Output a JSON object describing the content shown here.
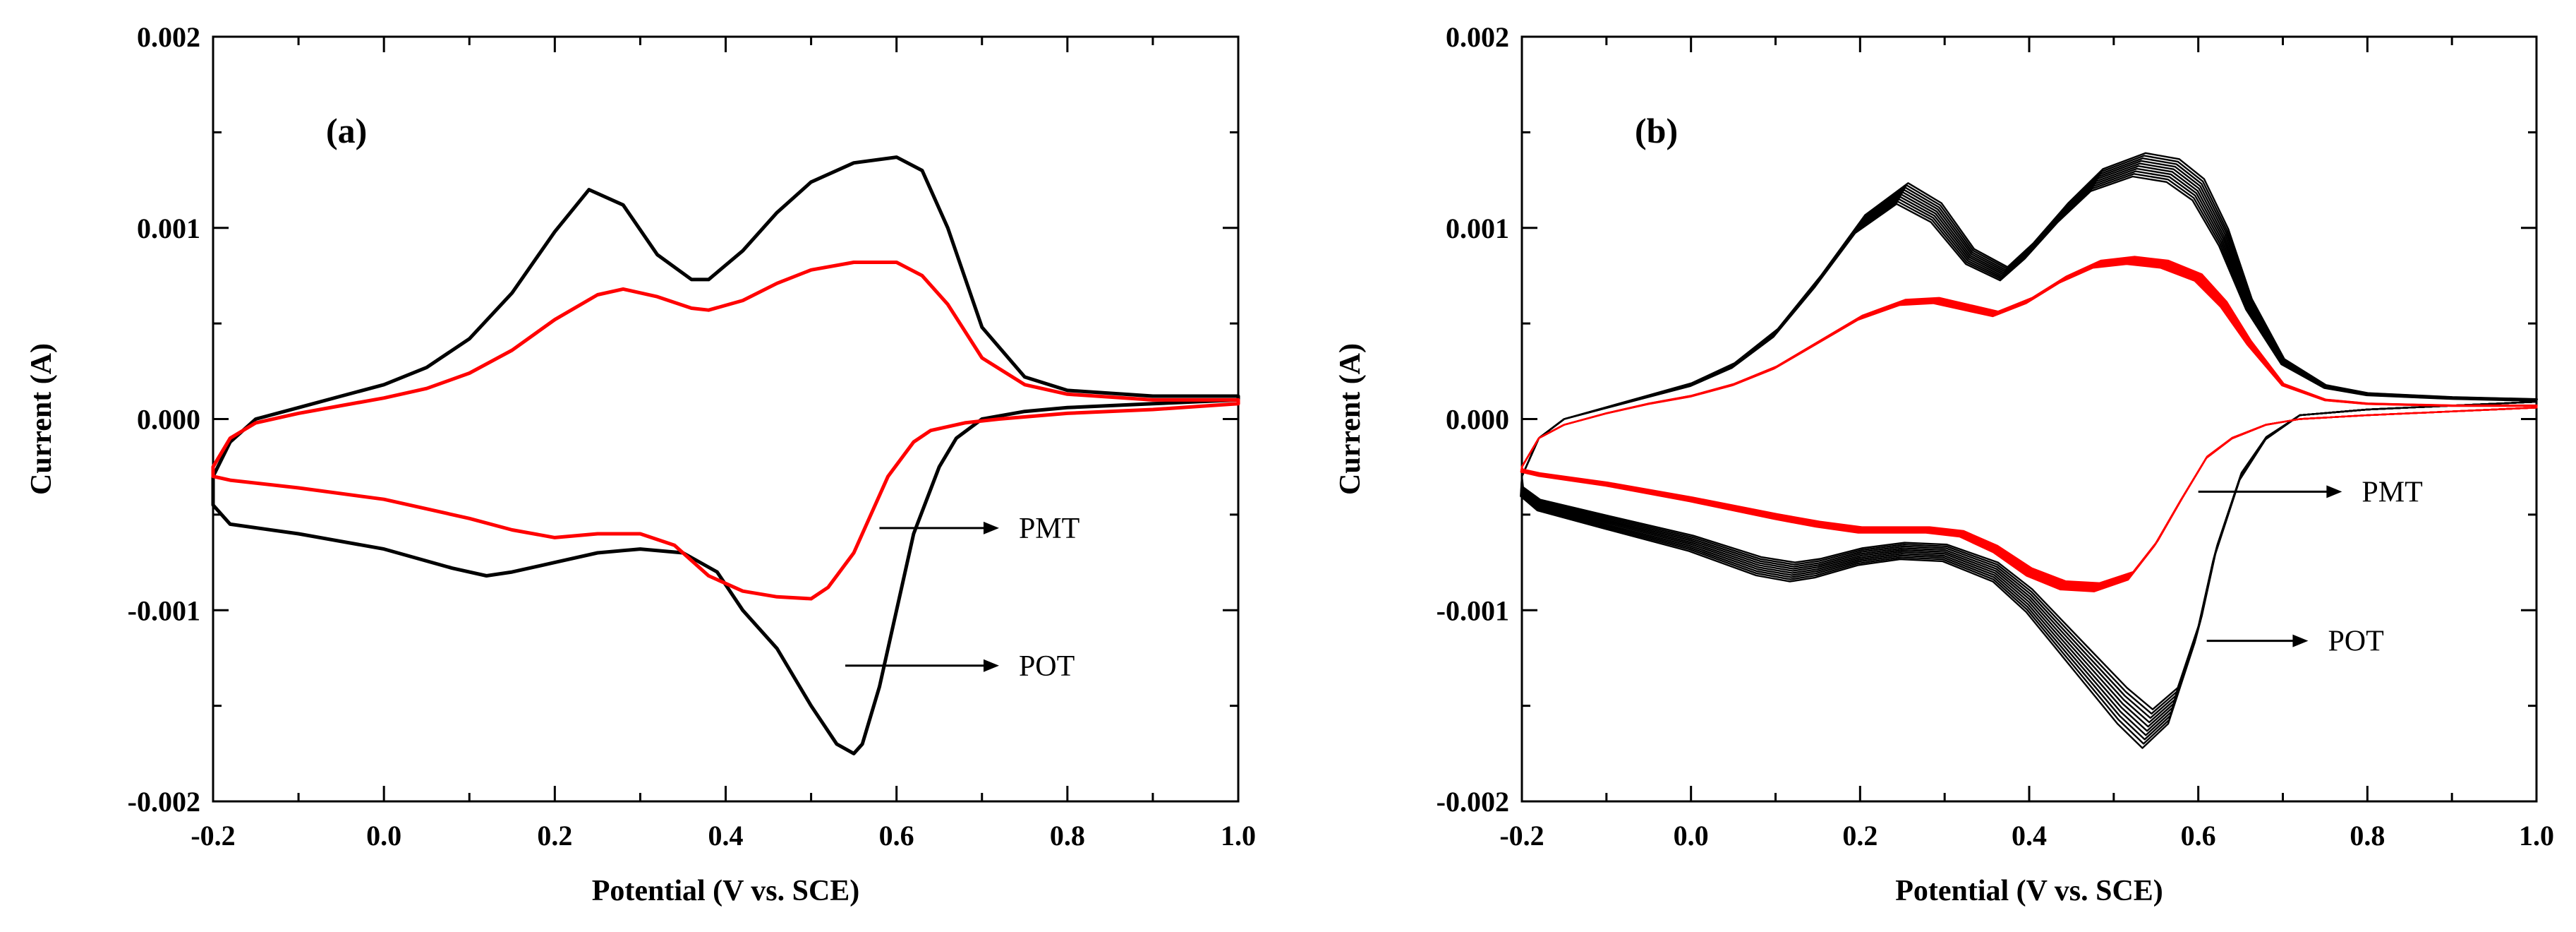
{
  "chart_data": [
    {
      "panel_label": "(a)",
      "type": "line",
      "xlabel": "Potential (V vs. SCE)",
      "ylabel": "Current (A)",
      "xlim": [
        -0.2,
        1.0
      ],
      "ylim": [
        -0.002,
        0.002
      ],
      "xticks": [
        -0.2,
        0.0,
        0.2,
        0.4,
        0.6,
        0.8,
        1.0
      ],
      "xtick_labels": [
        "-0.2",
        "0.0",
        "0.2",
        "0.4",
        "0.6",
        "0.8",
        "1.0"
      ],
      "yticks": [
        -0.002,
        -0.001,
        0.0,
        0.001,
        0.002
      ],
      "ytick_labels": [
        "-0.002",
        "-0.001",
        "0.000",
        "0.001",
        "0.002"
      ],
      "cycles": 1,
      "series": [
        {
          "name": "POT",
          "color": "#000000",
          "anodic": [
            [
              -0.2,
              -0.0003
            ],
            [
              -0.18,
              -0.00012
            ],
            [
              -0.15,
              0.0
            ],
            [
              -0.1,
              6e-05
            ],
            [
              -0.05,
              0.00012
            ],
            [
              0.0,
              0.00018
            ],
            [
              0.05,
              0.00027
            ],
            [
              0.1,
              0.00042
            ],
            [
              0.15,
              0.00066
            ],
            [
              0.2,
              0.00098
            ],
            [
              0.24,
              0.0012
            ],
            [
              0.28,
              0.00112
            ],
            [
              0.32,
              0.00086
            ],
            [
              0.36,
              0.00073
            ],
            [
              0.38,
              0.00073
            ],
            [
              0.42,
              0.00088
            ],
            [
              0.46,
              0.00108
            ],
            [
              0.5,
              0.00124
            ],
            [
              0.55,
              0.00134
            ],
            [
              0.6,
              0.00137
            ],
            [
              0.63,
              0.0013
            ],
            [
              0.66,
              0.001
            ],
            [
              0.7,
              0.00048
            ],
            [
              0.75,
              0.00022
            ],
            [
              0.8,
              0.00015
            ],
            [
              0.9,
              0.00012
            ],
            [
              1.0,
              0.00012
            ]
          ],
          "cathodic": [
            [
              1.0,
              0.0001
            ],
            [
              0.9,
              8e-05
            ],
            [
              0.8,
              6e-05
            ],
            [
              0.75,
              4e-05
            ],
            [
              0.7,
              0.0
            ],
            [
              0.67,
              -0.0001
            ],
            [
              0.65,
              -0.00025
            ],
            [
              0.62,
              -0.0006
            ],
            [
              0.6,
              -0.001
            ],
            [
              0.58,
              -0.0014
            ],
            [
              0.56,
              -0.0017
            ],
            [
              0.55,
              -0.00175
            ],
            [
              0.53,
              -0.0017
            ],
            [
              0.5,
              -0.0015
            ],
            [
              0.46,
              -0.0012
            ],
            [
              0.42,
              -0.001
            ],
            [
              0.39,
              -0.0008
            ],
            [
              0.35,
              -0.0007
            ],
            [
              0.3,
              -0.00068
            ],
            [
              0.25,
              -0.0007
            ],
            [
              0.2,
              -0.00075
            ],
            [
              0.15,
              -0.0008
            ],
            [
              0.12,
              -0.00082
            ],
            [
              0.08,
              -0.00078
            ],
            [
              0.0,
              -0.00068
            ],
            [
              -0.1,
              -0.0006
            ],
            [
              -0.18,
              -0.00055
            ],
            [
              -0.2,
              -0.00045
            ]
          ]
        },
        {
          "name": "PMT",
          "color": "#ff0000",
          "anodic": [
            [
              -0.2,
              -0.00025
            ],
            [
              -0.18,
              -0.0001
            ],
            [
              -0.15,
              -2e-05
            ],
            [
              -0.1,
              3e-05
            ],
            [
              -0.05,
              7e-05
            ],
            [
              0.0,
              0.00011
            ],
            [
              0.05,
              0.00016
            ],
            [
              0.1,
              0.00024
            ],
            [
              0.15,
              0.00036
            ],
            [
              0.2,
              0.00052
            ],
            [
              0.25,
              0.00065
            ],
            [
              0.28,
              0.00068
            ],
            [
              0.32,
              0.00064
            ],
            [
              0.36,
              0.00058
            ],
            [
              0.38,
              0.00057
            ],
            [
              0.42,
              0.00062
            ],
            [
              0.46,
              0.00071
            ],
            [
              0.5,
              0.00078
            ],
            [
              0.55,
              0.00082
            ],
            [
              0.6,
              0.00082
            ],
            [
              0.63,
              0.00075
            ],
            [
              0.66,
              0.0006
            ],
            [
              0.7,
              0.00032
            ],
            [
              0.75,
              0.00018
            ],
            [
              0.8,
              0.00013
            ],
            [
              0.9,
              0.0001
            ],
            [
              1.0,
              0.0001
            ]
          ],
          "cathodic": [
            [
              1.0,
              8e-05
            ],
            [
              0.9,
              5e-05
            ],
            [
              0.8,
              3e-05
            ],
            [
              0.72,
              0.0
            ],
            [
              0.68,
              -2e-05
            ],
            [
              0.64,
              -6e-05
            ],
            [
              0.62,
              -0.00012
            ],
            [
              0.59,
              -0.0003
            ],
            [
              0.57,
              -0.0005
            ],
            [
              0.55,
              -0.0007
            ],
            [
              0.52,
              -0.00088
            ],
            [
              0.5,
              -0.00094
            ],
            [
              0.46,
              -0.00093
            ],
            [
              0.42,
              -0.0009
            ],
            [
              0.38,
              -0.00082
            ],
            [
              0.34,
              -0.00066
            ],
            [
              0.3,
              -0.0006
            ],
            [
              0.25,
              -0.0006
            ],
            [
              0.2,
              -0.00062
            ],
            [
              0.15,
              -0.00058
            ],
            [
              0.1,
              -0.00052
            ],
            [
              0.0,
              -0.00042
            ],
            [
              -0.1,
              -0.00036
            ],
            [
              -0.18,
              -0.00032
            ],
            [
              -0.2,
              -0.0003
            ]
          ]
        }
      ],
      "annotations": [
        {
          "text": "PMT",
          "arrow_start": [
            0.58,
            -0.00057
          ],
          "arrow_end": [
            0.72,
            -0.00057
          ]
        },
        {
          "text": "POT",
          "arrow_start": [
            0.54,
            -0.00129
          ],
          "arrow_end": [
            0.72,
            -0.00129
          ]
        }
      ]
    },
    {
      "panel_label": "(b)",
      "type": "line",
      "xlabel": "Potential (V vs. SCE)",
      "ylabel": "Current (A)",
      "xlim": [
        -0.2,
        1.0
      ],
      "ylim": [
        -0.002,
        0.002
      ],
      "xticks": [
        -0.2,
        0.0,
        0.2,
        0.4,
        0.6,
        0.8,
        1.0
      ],
      "xtick_labels": [
        "-0.2",
        "0.0",
        "0.2",
        "0.4",
        "0.6",
        "0.8",
        "1.0"
      ],
      "yticks": [
        -0.002,
        -0.001,
        0.0,
        0.001,
        0.002
      ],
      "ytick_labels": [
        "-0.002",
        "-0.001",
        "0.000",
        "0.001",
        "0.002"
      ],
      "cycles": 10,
      "series": [
        {
          "name": "POT",
          "color": "#000000",
          "anodic": [
            [
              -0.2,
              -0.0003
            ],
            [
              -0.18,
              -0.0001
            ],
            [
              -0.15,
              0.0
            ],
            [
              -0.1,
              6e-05
            ],
            [
              -0.05,
              0.00012
            ],
            [
              0.0,
              0.00018
            ],
            [
              0.05,
              0.00028
            ],
            [
              0.1,
              0.00045
            ],
            [
              0.15,
              0.00072
            ],
            [
              0.2,
              0.00102
            ],
            [
              0.25,
              0.00118
            ],
            [
              0.29,
              0.00108
            ],
            [
              0.33,
              0.00085
            ],
            [
              0.37,
              0.00076
            ],
            [
              0.4,
              0.00088
            ],
            [
              0.44,
              0.00108
            ],
            [
              0.48,
              0.00125
            ],
            [
              0.53,
              0.00133
            ],
            [
              0.57,
              0.0013
            ],
            [
              0.6,
              0.0012
            ],
            [
              0.63,
              0.00095
            ],
            [
              0.66,
              0.0006
            ],
            [
              0.7,
              0.0003
            ],
            [
              0.75,
              0.00017
            ],
            [
              0.8,
              0.00013
            ],
            [
              0.9,
              0.00011
            ],
            [
              1.0,
              0.0001
            ]
          ],
          "cathodic": [
            [
              1.0,
              9e-05
            ],
            [
              0.9,
              7e-05
            ],
            [
              0.8,
              5e-05
            ],
            [
              0.72,
              2e-05
            ],
            [
              0.68,
              -0.0001
            ],
            [
              0.65,
              -0.0003
            ],
            [
              0.62,
              -0.0007
            ],
            [
              0.6,
              -0.0011
            ],
            [
              0.57,
              -0.0015
            ],
            [
              0.54,
              -0.00162
            ],
            [
              0.51,
              -0.0015
            ],
            [
              0.47,
              -0.0013
            ],
            [
              0.43,
              -0.0011
            ],
            [
              0.4,
              -0.00095
            ],
            [
              0.36,
              -0.0008
            ],
            [
              0.3,
              -0.0007
            ],
            [
              0.25,
              -0.00069
            ],
            [
              0.2,
              -0.00072
            ],
            [
              0.15,
              -0.00078
            ],
            [
              0.12,
              -0.0008
            ],
            [
              0.08,
              -0.00077
            ],
            [
              0.0,
              -0.00065
            ],
            [
              -0.1,
              -0.00054
            ],
            [
              -0.18,
              -0.00045
            ],
            [
              -0.2,
              -0.00038
            ]
          ],
          "cycle_growth": {
            "anodic_peak_variation": 0.00012,
            "cathodic_peak_variation": 0.0002
          }
        },
        {
          "name": "PMT",
          "color": "#ff0000",
          "anodic": [
            [
              -0.2,
              -0.00025
            ],
            [
              -0.18,
              -0.0001
            ],
            [
              -0.15,
              -3e-05
            ],
            [
              -0.1,
              3e-05
            ],
            [
              -0.05,
              8e-05
            ],
            [
              0.0,
              0.00012
            ],
            [
              0.05,
              0.00018
            ],
            [
              0.1,
              0.00027
            ],
            [
              0.15,
              0.0004
            ],
            [
              0.2,
              0.00053
            ],
            [
              0.25,
              0.00061
            ],
            [
              0.29,
              0.00062
            ],
            [
              0.33,
              0.00058
            ],
            [
              0.36,
              0.00055
            ],
            [
              0.4,
              0.00062
            ],
            [
              0.44,
              0.00073
            ],
            [
              0.48,
              0.00081
            ],
            [
              0.52,
              0.00083
            ],
            [
              0.56,
              0.00081
            ],
            [
              0.6,
              0.00074
            ],
            [
              0.63,
              0.0006
            ],
            [
              0.66,
              0.0004
            ],
            [
              0.7,
              0.00018
            ],
            [
              0.75,
              0.0001
            ],
            [
              0.8,
              8e-05
            ],
            [
              0.9,
              7e-05
            ],
            [
              1.0,
              7e-05
            ]
          ],
          "cathodic": [
            [
              1.0,
              6e-05
            ],
            [
              0.9,
              4e-05
            ],
            [
              0.8,
              2e-05
            ],
            [
              0.72,
              0.0
            ],
            [
              0.68,
              -3e-05
            ],
            [
              0.64,
              -0.0001
            ],
            [
              0.61,
              -0.0002
            ],
            [
              0.58,
              -0.00042
            ],
            [
              0.55,
              -0.00065
            ],
            [
              0.52,
              -0.00082
            ],
            [
              0.48,
              -0.00088
            ],
            [
              0.44,
              -0.00087
            ],
            [
              0.4,
              -0.0008
            ],
            [
              0.36,
              -0.00068
            ],
            [
              0.32,
              -0.0006
            ],
            [
              0.28,
              -0.00058
            ],
            [
              0.24,
              -0.00058
            ],
            [
              0.2,
              -0.00058
            ],
            [
              0.15,
              -0.00055
            ],
            [
              0.1,
              -0.00051
            ],
            [
              0.0,
              -0.00042
            ],
            [
              -0.1,
              -0.00034
            ],
            [
              -0.18,
              -0.00029
            ],
            [
              -0.2,
              -0.00027
            ]
          ],
          "cycle_growth": {
            "anodic_peak_variation": 6e-05,
            "cathodic_peak_variation": 8e-05
          }
        }
      ],
      "annotations": [
        {
          "text": "PMT",
          "arrow_start": [
            0.6,
            -0.00038
          ],
          "arrow_end": [
            0.77,
            -0.00038
          ]
        },
        {
          "text": "POT",
          "arrow_start": [
            0.61,
            -0.00116
          ],
          "arrow_end": [
            0.73,
            -0.00116
          ]
        }
      ]
    }
  ]
}
